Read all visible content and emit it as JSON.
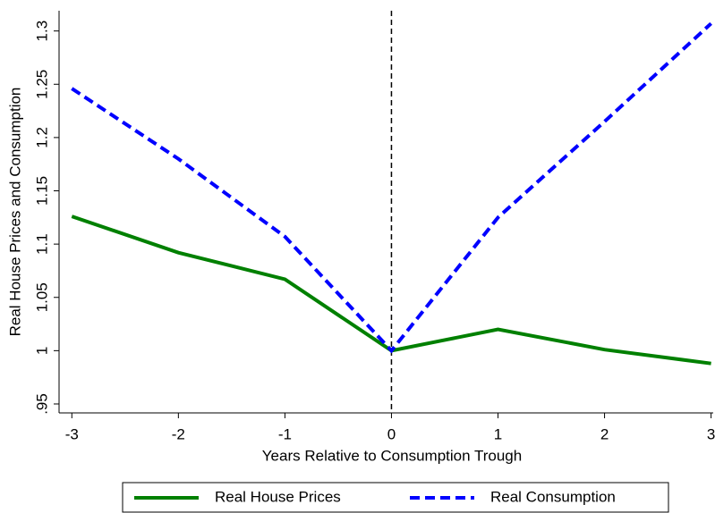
{
  "chart_data": {
    "type": "line",
    "x_label": "Years Relative to Consumption Trough",
    "y_label": "Real House Prices and Consumption",
    "x": [
      -3,
      -2,
      -1,
      0,
      1,
      2,
      3
    ],
    "series": [
      {
        "name": "Real House Prices",
        "color": "#008000",
        "dash": false,
        "values": [
          1.126,
          1.092,
          1.067,
          1.0,
          1.02,
          1.001,
          0.988
        ]
      },
      {
        "name": "Real Consumption",
        "color": "#0000ff",
        "dash": true,
        "values": [
          1.246,
          1.18,
          1.107,
          1.0,
          1.125,
          1.215,
          1.307
        ]
      }
    ],
    "xlim": [
      -3.12,
      3.02
    ],
    "xticks": [
      -3,
      -2,
      -1,
      0,
      1,
      2,
      3
    ],
    "ylim": [
      0.9416,
      1.319
    ],
    "yticks": [
      {
        "value": 0.95,
        "label": ".95"
      },
      1,
      1.05,
      1.1,
      1.15,
      1.2,
      1.25,
      1.3
    ],
    "vline": 0,
    "grid": false,
    "legend": "bottom"
  }
}
